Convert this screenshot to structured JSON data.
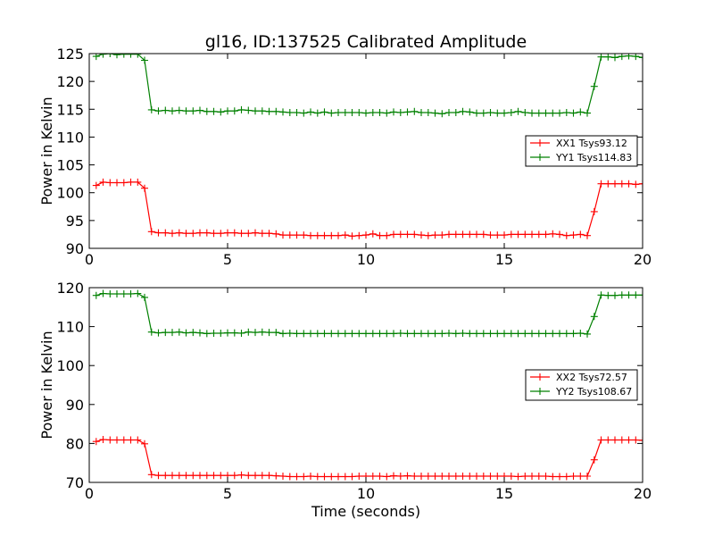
{
  "chart_data": [
    {
      "type": "line",
      "title": "gl16, ID:137525 Calibrated Amplitude",
      "xlabel": "",
      "ylabel": "Power in Kelvin",
      "xlim": [
        0,
        20
      ],
      "ylim": [
        90,
        125
      ],
      "xticks": [
        0,
        5,
        10,
        15,
        20
      ],
      "yticks": [
        90,
        95,
        100,
        105,
        110,
        115,
        120,
        125
      ],
      "legend_position": "center-right",
      "series": [
        {
          "name": "XX1 Tsys93.12",
          "color": "#ff0000",
          "x": [
            0.25,
            0.5,
            0.75,
            1.0,
            1.25,
            1.5,
            1.75,
            2.0,
            2.25,
            2.5,
            2.75,
            3.0,
            3.25,
            3.5,
            3.75,
            4.0,
            4.25,
            4.5,
            4.75,
            5.0,
            5.25,
            5.5,
            5.75,
            6.0,
            6.25,
            6.5,
            6.75,
            7.0,
            7.25,
            7.5,
            7.75,
            8.0,
            8.25,
            8.5,
            8.75,
            9.0,
            9.25,
            9.5,
            9.75,
            10.0,
            10.25,
            10.5,
            10.75,
            11.0,
            11.25,
            11.5,
            11.75,
            12.0,
            12.25,
            12.5,
            12.75,
            13.0,
            13.25,
            13.5,
            13.75,
            14.0,
            14.25,
            14.5,
            14.75,
            15.0,
            15.25,
            15.5,
            15.75,
            16.0,
            16.25,
            16.5,
            16.75,
            17.0,
            17.25,
            17.5,
            17.75,
            18.0,
            18.25,
            18.5,
            18.75,
            19.0,
            19.25,
            19.5,
            19.75,
            20.0
          ],
          "y": [
            101.3,
            101.9,
            101.8,
            101.8,
            101.8,
            101.9,
            101.9,
            100.8,
            93.0,
            92.8,
            92.8,
            92.7,
            92.8,
            92.7,
            92.7,
            92.8,
            92.8,
            92.7,
            92.7,
            92.8,
            92.8,
            92.7,
            92.7,
            92.8,
            92.7,
            92.7,
            92.6,
            92.4,
            92.4,
            92.4,
            92.4,
            92.3,
            92.3,
            92.3,
            92.3,
            92.3,
            92.4,
            92.2,
            92.3,
            92.4,
            92.6,
            92.3,
            92.3,
            92.5,
            92.5,
            92.5,
            92.5,
            92.4,
            92.3,
            92.4,
            92.4,
            92.5,
            92.5,
            92.5,
            92.5,
            92.5,
            92.5,
            92.4,
            92.4,
            92.4,
            92.5,
            92.5,
            92.5,
            92.5,
            92.5,
            92.5,
            92.6,
            92.5,
            92.3,
            92.4,
            92.5,
            92.3,
            96.6,
            101.6,
            101.6,
            101.6,
            101.6,
            101.6,
            101.5,
            101.6
          ]
        },
        {
          "name": "YY1 Tsys114.83",
          "color": "#008000",
          "x": [
            0.25,
            0.5,
            0.75,
            1.0,
            1.25,
            1.5,
            1.75,
            2.0,
            2.25,
            2.5,
            2.75,
            3.0,
            3.25,
            3.5,
            3.75,
            4.0,
            4.25,
            4.5,
            4.75,
            5.0,
            5.25,
            5.5,
            5.75,
            6.0,
            6.25,
            6.5,
            6.75,
            7.0,
            7.25,
            7.5,
            7.75,
            8.0,
            8.25,
            8.5,
            8.75,
            9.0,
            9.25,
            9.5,
            9.75,
            10.0,
            10.25,
            10.5,
            10.75,
            11.0,
            11.25,
            11.5,
            11.75,
            12.0,
            12.25,
            12.5,
            12.75,
            13.0,
            13.25,
            13.5,
            13.75,
            14.0,
            14.25,
            14.5,
            14.75,
            15.0,
            15.25,
            15.5,
            15.75,
            16.0,
            16.25,
            16.5,
            16.75,
            17.0,
            17.25,
            17.5,
            17.75,
            18.0,
            18.25,
            18.5,
            18.75,
            19.0,
            19.25,
            19.5,
            19.75,
            20.0
          ],
          "y": [
            124.5,
            124.9,
            125.0,
            124.8,
            124.9,
            124.9,
            124.9,
            123.8,
            114.9,
            114.7,
            114.8,
            114.7,
            114.8,
            114.7,
            114.7,
            114.8,
            114.6,
            114.6,
            114.5,
            114.7,
            114.7,
            114.9,
            114.8,
            114.7,
            114.7,
            114.6,
            114.6,
            114.5,
            114.4,
            114.4,
            114.3,
            114.5,
            114.3,
            114.5,
            114.3,
            114.4,
            114.4,
            114.4,
            114.4,
            114.3,
            114.4,
            114.4,
            114.3,
            114.5,
            114.4,
            114.5,
            114.6,
            114.4,
            114.4,
            114.3,
            114.2,
            114.4,
            114.4,
            114.6,
            114.5,
            114.3,
            114.3,
            114.4,
            114.3,
            114.3,
            114.4,
            114.6,
            114.4,
            114.3,
            114.3,
            114.3,
            114.3,
            114.3,
            114.4,
            114.3,
            114.5,
            114.3,
            119.1,
            124.4,
            124.4,
            124.3,
            124.5,
            124.6,
            124.5,
            124.3
          ]
        }
      ]
    },
    {
      "type": "line",
      "title": "",
      "xlabel": "Time (seconds)",
      "ylabel": "Power in Kelvin",
      "xlim": [
        0,
        20
      ],
      "ylim": [
        70,
        120
      ],
      "xticks": [
        0,
        5,
        10,
        15,
        20
      ],
      "yticks": [
        70,
        80,
        90,
        100,
        110,
        120
      ],
      "legend_position": "center-right",
      "series": [
        {
          "name": "XX2 Tsys72.57",
          "color": "#ff0000",
          "x": [
            0.25,
            0.5,
            0.75,
            1.0,
            1.25,
            1.5,
            1.75,
            2.0,
            2.25,
            2.5,
            2.75,
            3.0,
            3.25,
            3.5,
            3.75,
            4.0,
            4.25,
            4.5,
            4.75,
            5.0,
            5.25,
            5.5,
            5.75,
            6.0,
            6.25,
            6.5,
            6.75,
            7.0,
            7.25,
            7.5,
            7.75,
            8.0,
            8.25,
            8.5,
            8.75,
            9.0,
            9.25,
            9.5,
            9.75,
            10.0,
            10.25,
            10.5,
            10.75,
            11.0,
            11.25,
            11.5,
            11.75,
            12.0,
            12.25,
            12.5,
            12.75,
            13.0,
            13.25,
            13.5,
            13.75,
            14.0,
            14.25,
            14.5,
            14.75,
            15.0,
            15.25,
            15.5,
            15.75,
            16.0,
            16.25,
            16.5,
            16.75,
            17.0,
            17.25,
            17.5,
            17.75,
            18.0,
            18.25,
            18.5,
            18.75,
            19.0,
            19.25,
            19.5,
            19.75,
            20.0
          ],
          "y": [
            80.5,
            81.0,
            80.9,
            80.9,
            80.9,
            80.9,
            80.9,
            79.9,
            72.0,
            71.8,
            71.8,
            71.8,
            71.8,
            71.8,
            71.8,
            71.8,
            71.8,
            71.8,
            71.8,
            71.8,
            71.8,
            71.9,
            71.8,
            71.8,
            71.8,
            71.8,
            71.7,
            71.6,
            71.5,
            71.5,
            71.5,
            71.6,
            71.5,
            71.5,
            71.5,
            71.5,
            71.5,
            71.5,
            71.6,
            71.6,
            71.6,
            71.6,
            71.5,
            71.7,
            71.6,
            71.7,
            71.6,
            71.6,
            71.6,
            71.6,
            71.6,
            71.6,
            71.6,
            71.6,
            71.6,
            71.6,
            71.6,
            71.6,
            71.6,
            71.6,
            71.6,
            71.5,
            71.6,
            71.6,
            71.6,
            71.6,
            71.5,
            71.5,
            71.5,
            71.6,
            71.6,
            71.6,
            75.8,
            80.9,
            80.9,
            80.9,
            80.9,
            80.9,
            80.9,
            80.8
          ]
        },
        {
          "name": "YY2 Tsys108.67",
          "color": "#008000",
          "x": [
            0.25,
            0.5,
            0.75,
            1.0,
            1.25,
            1.5,
            1.75,
            2.0,
            2.25,
            2.5,
            2.75,
            3.0,
            3.25,
            3.5,
            3.75,
            4.0,
            4.25,
            4.5,
            4.75,
            5.0,
            5.25,
            5.5,
            5.75,
            6.0,
            6.25,
            6.5,
            6.75,
            7.0,
            7.25,
            7.5,
            7.75,
            8.0,
            8.25,
            8.5,
            8.75,
            9.0,
            9.25,
            9.5,
            9.75,
            10.0,
            10.25,
            10.5,
            10.75,
            11.0,
            11.25,
            11.5,
            11.75,
            12.0,
            12.25,
            12.5,
            12.75,
            13.0,
            13.25,
            13.5,
            13.75,
            14.0,
            14.25,
            14.5,
            14.75,
            15.0,
            15.25,
            15.5,
            15.75,
            16.0,
            16.25,
            16.5,
            16.75,
            17.0,
            17.25,
            17.5,
            17.75,
            18.0,
            18.25,
            18.5,
            18.75,
            19.0,
            19.25,
            19.5,
            19.75,
            20.0
          ],
          "y": [
            118.0,
            118.5,
            118.4,
            118.4,
            118.4,
            118.4,
            118.5,
            117.5,
            108.6,
            108.4,
            108.5,
            108.5,
            108.6,
            108.4,
            108.5,
            108.4,
            108.2,
            108.3,
            108.3,
            108.4,
            108.4,
            108.3,
            108.6,
            108.5,
            108.6,
            108.5,
            108.5,
            108.2,
            108.3,
            108.2,
            108.2,
            108.2,
            108.2,
            108.2,
            108.2,
            108.2,
            108.2,
            108.2,
            108.2,
            108.2,
            108.2,
            108.2,
            108.2,
            108.2,
            108.3,
            108.2,
            108.2,
            108.2,
            108.2,
            108.2,
            108.2,
            108.3,
            108.2,
            108.3,
            108.2,
            108.2,
            108.2,
            108.2,
            108.2,
            108.2,
            108.2,
            108.2,
            108.2,
            108.2,
            108.2,
            108.2,
            108.2,
            108.2,
            108.2,
            108.2,
            108.3,
            108.1,
            112.6,
            118.1,
            118.0,
            118.0,
            118.1,
            118.1,
            118.1,
            118.1
          ]
        }
      ]
    }
  ]
}
